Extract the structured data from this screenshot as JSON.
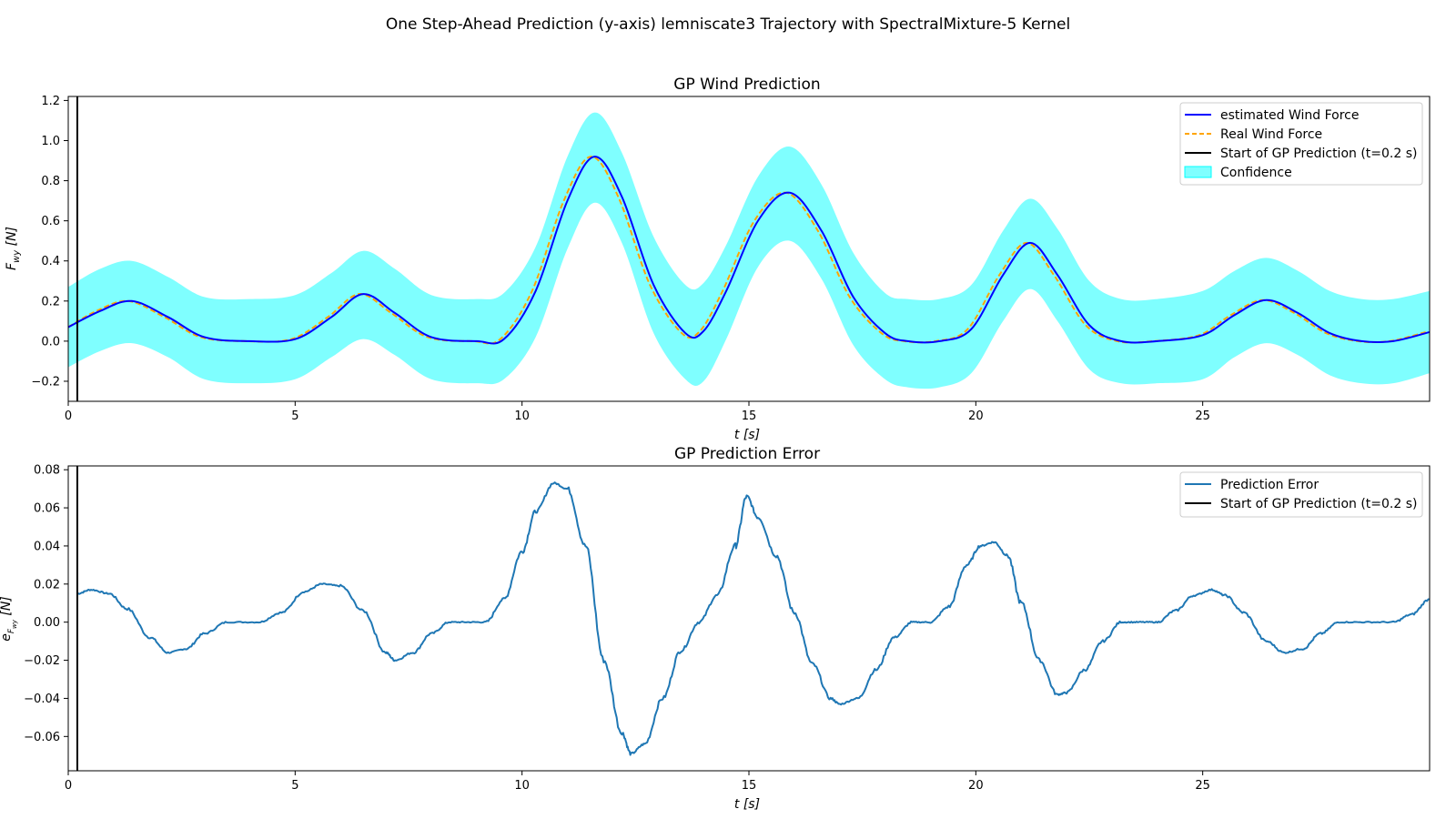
{
  "chart_data": {
    "suptitle": "One Step-Ahead Prediction (y-axis) lemniscate3 Trajectory with SpectralMixture-5 Kernel",
    "colors": {
      "estimated": "#0000ff",
      "real": "#ffa500",
      "start": "#000000",
      "confidence": "#00ffff",
      "error": "#1f77b4"
    },
    "top": {
      "type": "line",
      "title": "GP Wind Prediction",
      "xlabel": "t [s]",
      "ylabel_main": "F",
      "ylabel_sub": "wy",
      "ylabel_unit": " [N]",
      "xlim": [
        0,
        30
      ],
      "ylim": [
        -0.3,
        1.22
      ],
      "xticks": [
        0,
        5,
        10,
        15,
        20,
        25
      ],
      "xtick_labels": [
        "0",
        "5",
        "10",
        "15",
        "20",
        "25"
      ],
      "yticks": [
        -0.2,
        0.0,
        0.2,
        0.4,
        0.6,
        0.8,
        1.0,
        1.2
      ],
      "ytick_labels": [
        "−0.2",
        "0.0",
        "0.2",
        "0.4",
        "0.6",
        "0.8",
        "1.0",
        "1.2"
      ],
      "legend": {
        "position": "top-right",
        "entries": [
          "estimated Wind Force",
          "Real Wind Force",
          "Start of GP Prediction (t=0.2 s)",
          "Confidence"
        ]
      },
      "start_line_t": 0.2,
      "series": [
        {
          "name": "estimated Wind Force",
          "style": "solid",
          "x": [
            0,
            0.7,
            1.4,
            2.2,
            3.0,
            4.0,
            5.0,
            5.8,
            6.5,
            7.2,
            8.0,
            9.0,
            9.6,
            10.3,
            11.0,
            11.6,
            12.2,
            12.9,
            13.6,
            14.0,
            14.5,
            15.2,
            15.9,
            16.6,
            17.3,
            18.0,
            18.5,
            19.2,
            19.9,
            20.6,
            21.2,
            21.8,
            22.5,
            23.2,
            24.0,
            25.0,
            25.7,
            26.4,
            27.1,
            27.8,
            28.5,
            29.2,
            30.0
          ],
          "y": [
            0.07,
            0.15,
            0.2,
            0.12,
            0.02,
            0.0,
            0.01,
            0.12,
            0.235,
            0.14,
            0.02,
            0.0,
            0.01,
            0.25,
            0.7,
            0.92,
            0.72,
            0.28,
            0.04,
            0.05,
            0.25,
            0.6,
            0.74,
            0.55,
            0.22,
            0.04,
            0.0,
            0.0,
            0.06,
            0.33,
            0.49,
            0.33,
            0.08,
            0.0,
            0.0,
            0.03,
            0.13,
            0.205,
            0.14,
            0.04,
            0.0,
            0.0,
            0.045
          ]
        },
        {
          "name": "Real Wind Force",
          "style": "dashed",
          "shift": -0.08,
          "x": [
            0,
            0.7,
            1.4,
            2.2,
            3.0,
            4.0,
            5.0,
            5.8,
            6.5,
            7.2,
            8.0,
            9.0,
            9.6,
            10.3,
            11.0,
            11.6,
            12.2,
            12.9,
            13.6,
            14.0,
            14.5,
            15.2,
            15.9,
            16.6,
            17.3,
            18.0,
            18.5,
            19.2,
            19.9,
            20.6,
            21.2,
            21.8,
            22.5,
            23.2,
            24.0,
            25.0,
            25.7,
            26.4,
            27.1,
            27.8,
            28.5,
            29.2,
            30.0
          ],
          "y": [
            0.07,
            0.15,
            0.2,
            0.12,
            0.02,
            0.0,
            0.01,
            0.12,
            0.235,
            0.14,
            0.02,
            0.0,
            0.01,
            0.25,
            0.7,
            0.92,
            0.72,
            0.28,
            0.04,
            0.05,
            0.25,
            0.6,
            0.74,
            0.55,
            0.22,
            0.04,
            0.0,
            0.0,
            0.06,
            0.33,
            0.49,
            0.33,
            0.08,
            0.0,
            0.0,
            0.03,
            0.13,
            0.205,
            0.14,
            0.04,
            0.0,
            0.0,
            0.045
          ]
        }
      ],
      "confidence": {
        "name": "Confidence",
        "x": [
          0,
          0.7,
          1.4,
          2.2,
          3.0,
          4.0,
          5.0,
          5.8,
          6.5,
          7.2,
          8.0,
          9.0,
          9.6,
          10.3,
          11.0,
          11.6,
          12.2,
          12.9,
          13.6,
          14.0,
          14.5,
          15.2,
          15.9,
          16.6,
          17.3,
          18.0,
          18.5,
          19.2,
          19.9,
          20.6,
          21.2,
          21.8,
          22.5,
          23.2,
          24.0,
          25.0,
          25.7,
          26.4,
          27.1,
          27.8,
          28.5,
          29.2,
          30.0
        ],
        "upper": [
          0.27,
          0.36,
          0.4,
          0.32,
          0.22,
          0.21,
          0.23,
          0.34,
          0.45,
          0.36,
          0.23,
          0.21,
          0.24,
          0.47,
          0.92,
          1.14,
          0.94,
          0.52,
          0.28,
          0.29,
          0.48,
          0.82,
          0.97,
          0.78,
          0.44,
          0.24,
          0.21,
          0.21,
          0.28,
          0.55,
          0.71,
          0.56,
          0.3,
          0.21,
          0.21,
          0.25,
          0.35,
          0.415,
          0.35,
          0.25,
          0.21,
          0.21,
          0.25
        ],
        "lower": [
          -0.13,
          -0.05,
          -0.01,
          -0.08,
          -0.19,
          -0.21,
          -0.19,
          -0.08,
          0.01,
          -0.07,
          -0.19,
          -0.21,
          -0.19,
          0.02,
          0.46,
          0.69,
          0.49,
          0.04,
          -0.19,
          -0.2,
          0.01,
          0.37,
          0.5,
          0.31,
          -0.02,
          -0.19,
          -0.23,
          -0.23,
          -0.16,
          0.1,
          0.26,
          0.1,
          -0.14,
          -0.21,
          -0.21,
          -0.19,
          -0.08,
          -0.01,
          -0.07,
          -0.17,
          -0.21,
          -0.21,
          -0.16
        ]
      }
    },
    "bottom": {
      "type": "line",
      "title": "GP Prediction Error",
      "xlabel": "t [s]",
      "ylabel_main": "e",
      "ylabel_sub": "F",
      "ylabel_subsub": "wy",
      "ylabel_unit": " [N]",
      "xlim": [
        0,
        30
      ],
      "ylim": [
        -0.078,
        0.082
      ],
      "xticks": [
        0,
        5,
        10,
        15,
        20,
        25
      ],
      "xtick_labels": [
        "0",
        "5",
        "10",
        "15",
        "20",
        "25"
      ],
      "yticks": [
        -0.06,
        -0.04,
        -0.02,
        0.0,
        0.02,
        0.04,
        0.06,
        0.08
      ],
      "ytick_labels": [
        "−0.06",
        "−0.04",
        "−0.02",
        "0.00",
        "0.02",
        "0.04",
        "0.06",
        "0.08"
      ],
      "legend": {
        "position": "top-right",
        "entries": [
          "Prediction Error",
          "Start of GP Prediction (t=0.2 s)"
        ]
      },
      "start_line_t": 0.2,
      "series": [
        {
          "name": "Prediction Error",
          "x": [
            0.2,
            0.5,
            0.9,
            1.3,
            1.8,
            2.2,
            2.6,
            3.0,
            3.5,
            4.2,
            4.7,
            5.2,
            5.6,
            6.0,
            6.5,
            7.0,
            7.2,
            7.6,
            8.0,
            8.4,
            8.8,
            9.2,
            9.6,
            10.0,
            10.3,
            10.7,
            11.0,
            11.4,
            11.8,
            12.2,
            12.4,
            12.7,
            13.1,
            13.5,
            13.9,
            14.3,
            14.7,
            14.95,
            15.2,
            15.6,
            16.0,
            16.4,
            16.8,
            17.0,
            17.4,
            17.8,
            18.2,
            18.6,
            19.0,
            19.4,
            19.8,
            20.1,
            20.4,
            20.7,
            21.0,
            21.4,
            21.8,
            22.0,
            22.4,
            22.8,
            23.2,
            23.6,
            24.0,
            24.4,
            24.8,
            25.2,
            25.5,
            25.9,
            26.4,
            26.8,
            27.2,
            27.6,
            28.0,
            28.6,
            29.2,
            29.6,
            30.0
          ],
          "y": [
            0.015,
            0.017,
            0.015,
            0.007,
            -0.008,
            -0.016,
            -0.014,
            -0.006,
            0.0,
            0.0,
            0.005,
            0.016,
            0.02,
            0.019,
            0.006,
            -0.016,
            -0.02,
            -0.016,
            -0.006,
            0.0,
            0.0,
            0.0,
            0.012,
            0.037,
            0.058,
            0.073,
            0.07,
            0.04,
            -0.02,
            -0.058,
            -0.069,
            -0.064,
            -0.04,
            -0.015,
            0.0,
            0.014,
            0.04,
            0.066,
            0.055,
            0.035,
            0.005,
            -0.022,
            -0.04,
            -0.043,
            -0.04,
            -0.025,
            -0.008,
            0.0,
            0.0,
            0.008,
            0.03,
            0.04,
            0.042,
            0.035,
            0.01,
            -0.02,
            -0.038,
            -0.037,
            -0.025,
            -0.01,
            0.0,
            0.0,
            0.0,
            0.006,
            0.014,
            0.017,
            0.014,
            0.005,
            -0.01,
            -0.016,
            -0.014,
            -0.006,
            0.0,
            0.0,
            0.0,
            0.004,
            0.012
          ]
        }
      ]
    }
  }
}
